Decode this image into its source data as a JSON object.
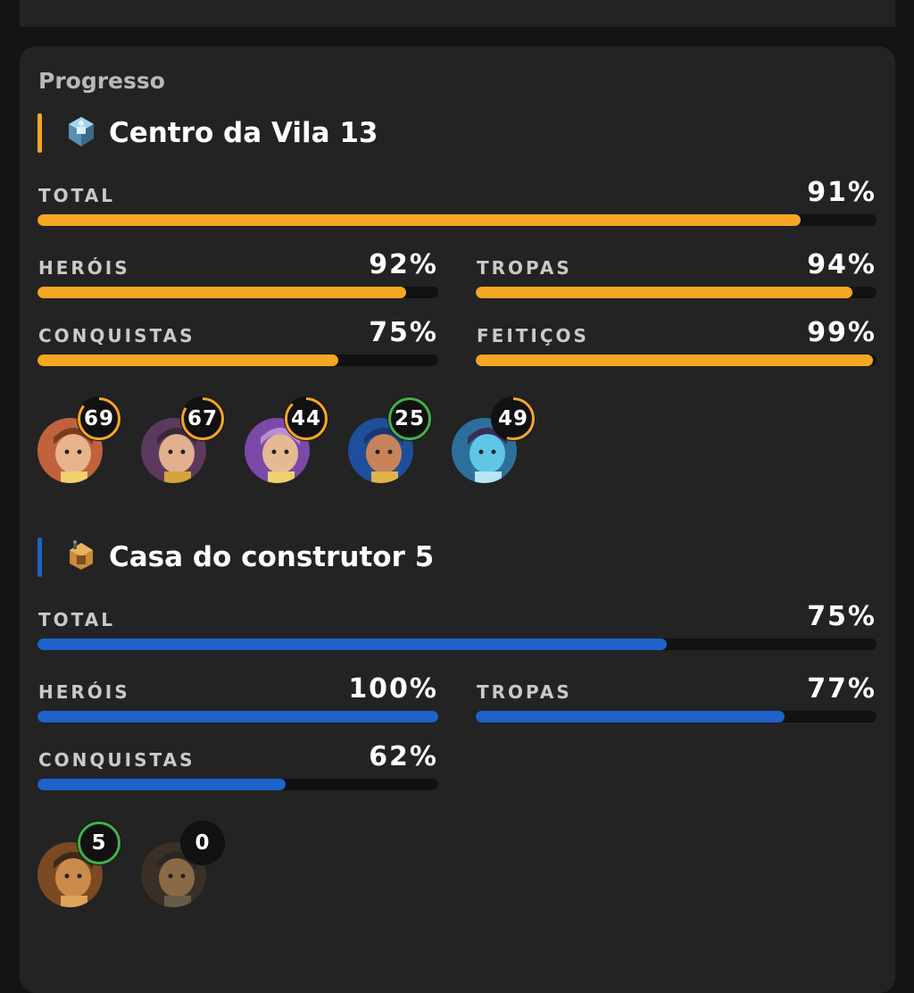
{
  "card_title": "Progresso",
  "colors": {
    "orange": "#f5a623",
    "blue": "#1d63c9",
    "green": "#43b049"
  },
  "home": {
    "title": "Centro da Vila 13",
    "icon": "town-hall-icon",
    "total_label": "TOTAL",
    "total_value": "91%",
    "total_fraction": 0.91,
    "stats": [
      {
        "label": "HERÓIS",
        "value": "92%",
        "fraction": 0.92
      },
      {
        "label": "TROPAS",
        "value": "94%",
        "fraction": 0.94
      },
      {
        "label": "CONQUISTAS",
        "value": "75%",
        "fraction": 0.75
      },
      {
        "label": "FEITIÇOS",
        "value": "99%",
        "fraction": 0.99
      }
    ],
    "heroes": [
      {
        "name": "barbarian-king-avatar",
        "level": "69",
        "progress": 0.86,
        "ring": "orange"
      },
      {
        "name": "archer-queen-avatar",
        "level": "67",
        "progress": 0.84,
        "ring": "orange"
      },
      {
        "name": "grand-warden-avatar",
        "level": "44",
        "progress": 0.88,
        "ring": "orange"
      },
      {
        "name": "royal-champion-avatar",
        "level": "25",
        "progress": 1.0,
        "ring": "green"
      },
      {
        "name": "minion-prince-avatar",
        "level": "49",
        "progress": 0.55,
        "ring": "orange"
      }
    ]
  },
  "builder": {
    "title": "Casa do construtor 5",
    "icon": "builder-hall-icon",
    "total_label": "TOTAL",
    "total_value": "75%",
    "total_fraction": 0.75,
    "stats": [
      {
        "label": "HERÓIS",
        "value": "100%",
        "fraction": 1.0
      },
      {
        "label": "TROPAS",
        "value": "77%",
        "fraction": 0.77
      },
      {
        "label": "CONQUISTAS",
        "value": "62%",
        "fraction": 0.62
      }
    ],
    "heroes": [
      {
        "name": "battle-machine-avatar",
        "level": "5",
        "progress": 1.0,
        "ring": "green"
      },
      {
        "name": "battle-copter-avatar",
        "level": "0",
        "progress": 0.0,
        "ring": "none"
      }
    ]
  }
}
